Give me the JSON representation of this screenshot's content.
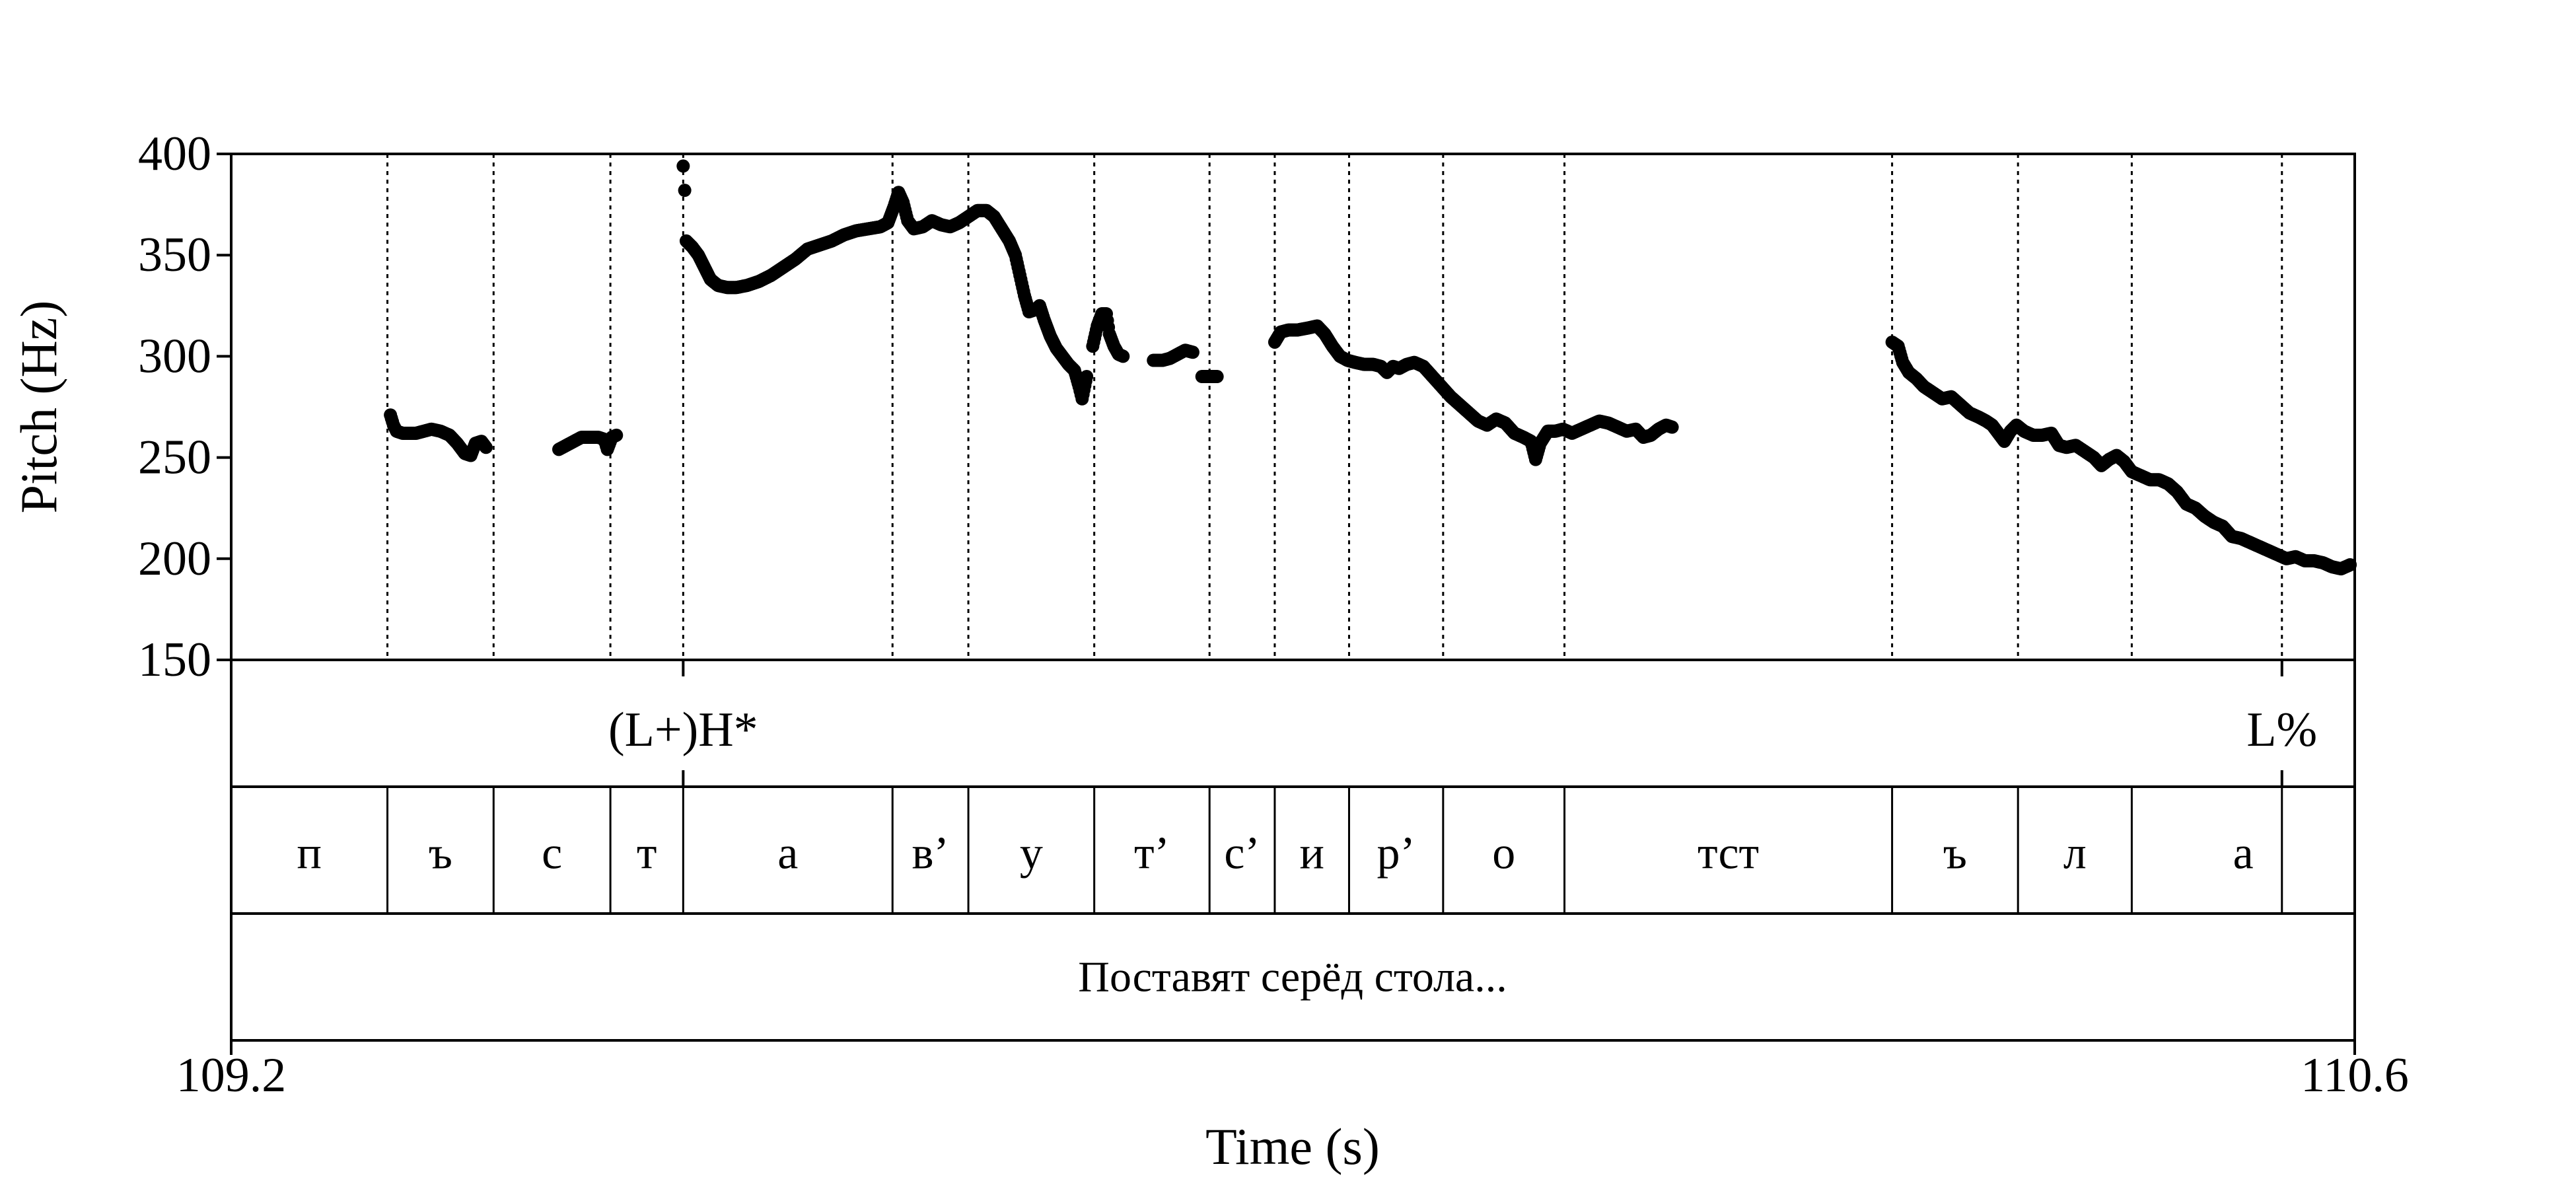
{
  "chart_data": {
    "type": "scatter",
    "title": "",
    "xlabel": "Time (s)",
    "ylabel": "Pitch (Hz)",
    "xlim": [
      109.2,
      110.6
    ],
    "ylim": [
      150,
      400
    ],
    "x_tick_labels": [
      "109.2",
      "110.6"
    ],
    "y_ticks": [
      150,
      200,
      250,
      300,
      350,
      400
    ],
    "y_tick_labels": [
      "150",
      "200",
      "250",
      "300",
      "350",
      "400"
    ],
    "grid": false,
    "legend": "none",
    "point_color": "#000000",
    "segment_boundaries": [
      109.303,
      109.373,
      109.45,
      109.498,
      109.636,
      109.686,
      109.769,
      109.845,
      109.888,
      109.937,
      109.999,
      110.079,
      110.295,
      110.378,
      110.453,
      110.552
    ],
    "tones": [
      {
        "label": "(L+)H*",
        "x": 109.498
      },
      {
        "label": "L%",
        "x": 110.552
      }
    ],
    "segments": [
      {
        "label": "п",
        "start": 109.2,
        "end": 109.303
      },
      {
        "label": "ъ",
        "start": 109.303,
        "end": 109.373
      },
      {
        "label": "с",
        "start": 109.373,
        "end": 109.45
      },
      {
        "label": "т",
        "start": 109.45,
        "end": 109.498
      },
      {
        "label": "а",
        "start": 109.498,
        "end": 109.636
      },
      {
        "label": "в’",
        "start": 109.636,
        "end": 109.686
      },
      {
        "label": "у",
        "start": 109.686,
        "end": 109.769
      },
      {
        "label": "т’",
        "start": 109.769,
        "end": 109.845
      },
      {
        "label": "с’",
        "start": 109.845,
        "end": 109.888
      },
      {
        "label": "и",
        "start": 109.888,
        "end": 109.937
      },
      {
        "label": "р’",
        "start": 109.937,
        "end": 109.999
      },
      {
        "label": "о",
        "start": 109.999,
        "end": 110.079
      },
      {
        "label": "тст",
        "start": 110.079,
        "end": 110.295
      },
      {
        "label": "ъ",
        "start": 110.295,
        "end": 110.378
      },
      {
        "label": "л",
        "start": 110.378,
        "end": 110.453
      },
      {
        "label": "а",
        "start": 110.453,
        "end": 110.6
      }
    ],
    "sentence": "Поставят серёд стола...",
    "pitch_runs": [
      [
        [
          109.305,
          271
        ],
        [
          109.307,
          266
        ],
        [
          109.309,
          263
        ],
        [
          109.313,
          262
        ],
        [
          109.317,
          262
        ],
        [
          109.322,
          262
        ],
        [
          109.327,
          263
        ],
        [
          109.332,
          264
        ],
        [
          109.338,
          263
        ],
        [
          109.344,
          261
        ],
        [
          109.349,
          257
        ],
        [
          109.354,
          252
        ],
        [
          109.358,
          251
        ],
        [
          109.361,
          257
        ],
        [
          109.365,
          258
        ],
        [
          109.368,
          255
        ]
      ],
      [
        [
          109.416,
          254
        ],
        [
          109.421,
          256
        ],
        [
          109.426,
          258
        ],
        [
          109.431,
          260
        ],
        [
          109.437,
          260
        ],
        [
          109.442,
          260
        ],
        [
          109.446,
          259
        ],
        [
          109.448,
          254
        ],
        [
          109.451,
          260
        ],
        [
          109.454,
          261
        ]
      ],
      [
        [
          109.498,
          394
        ],
        [
          109.499,
          382
        ],
        [
          109.5,
          357
        ],
        [
          109.504,
          354
        ],
        [
          109.508,
          350
        ],
        [
          109.512,
          344
        ],
        [
          109.516,
          338
        ],
        [
          109.521,
          335
        ],
        [
          109.527,
          334
        ],
        [
          109.533,
          334
        ],
        [
          109.54,
          335
        ],
        [
          109.548,
          337
        ],
        [
          109.556,
          340
        ],
        [
          109.564,
          344
        ],
        [
          109.572,
          348
        ],
        [
          109.58,
          353
        ],
        [
          109.588,
          355
        ],
        [
          109.596,
          357
        ],
        [
          109.604,
          360
        ],
        [
          109.612,
          362
        ],
        [
          109.62,
          363
        ],
        [
          109.628,
          364
        ],
        [
          109.633,
          366
        ],
        [
          109.637,
          374
        ],
        [
          109.64,
          381
        ],
        [
          109.643,
          376
        ],
        [
          109.646,
          367
        ],
        [
          109.65,
          363
        ],
        [
          109.656,
          364
        ],
        [
          109.662,
          367
        ],
        [
          109.668,
          365
        ],
        [
          109.674,
          364
        ],
        [
          109.68,
          366
        ],
        [
          109.686,
          369
        ],
        [
          109.692,
          372
        ],
        [
          109.698,
          372
        ],
        [
          109.703,
          369
        ],
        [
          109.708,
          363
        ],
        [
          109.713,
          357
        ],
        [
          109.717,
          350
        ],
        [
          109.72,
          340
        ],
        [
          109.723,
          330
        ],
        [
          109.726,
          322
        ],
        [
          109.73,
          323
        ],
        [
          109.733,
          325
        ],
        [
          109.736,
          318
        ],
        [
          109.74,
          310
        ],
        [
          109.744,
          304
        ],
        [
          109.748,
          300
        ],
        [
          109.752,
          296
        ],
        [
          109.756,
          293
        ],
        [
          109.759,
          285
        ],
        [
          109.761,
          279
        ],
        [
          109.764,
          290
        ]
      ],
      [
        [
          109.768,
          305
        ],
        [
          109.771,
          315
        ],
        [
          109.774,
          321
        ],
        [
          109.777,
          321
        ],
        [
          109.779,
          311
        ],
        [
          109.782,
          305
        ],
        [
          109.785,
          301
        ],
        [
          109.788,
          300
        ]
      ],
      [
        [
          109.808,
          298
        ],
        [
          109.814,
          298
        ],
        [
          109.819,
          299
        ],
        [
          109.824,
          301
        ],
        [
          109.829,
          303
        ],
        [
          109.834,
          302
        ]
      ],
      [
        [
          109.84,
          290
        ],
        [
          109.845,
          290
        ],
        [
          109.85,
          290
        ]
      ],
      [
        [
          109.888,
          307
        ],
        [
          109.892,
          312
        ],
        [
          109.897,
          313
        ],
        [
          109.903,
          313
        ],
        [
          109.91,
          314
        ],
        [
          109.916,
          315
        ],
        [
          109.921,
          311
        ],
        [
          109.926,
          305
        ],
        [
          109.931,
          300
        ],
        [
          109.936,
          298
        ],
        [
          109.941,
          297
        ],
        [
          109.947,
          296
        ],
        [
          109.953,
          296
        ],
        [
          109.958,
          295
        ],
        [
          109.962,
          292
        ],
        [
          109.966,
          295
        ],
        [
          109.97,
          294
        ],
        [
          109.975,
          296
        ],
        [
          109.98,
          297
        ],
        [
          109.986,
          295
        ],
        [
          109.992,
          290
        ],
        [
          109.998,
          285
        ],
        [
          110.004,
          280
        ],
        [
          110.01,
          276
        ],
        [
          110.016,
          272
        ],
        [
          110.022,
          268
        ],
        [
          110.028,
          266
        ],
        [
          110.034,
          269
        ],
        [
          110.04,
          267
        ],
        [
          110.046,
          262
        ],
        [
          110.052,
          260
        ],
        [
          110.057,
          258
        ],
        [
          110.06,
          249
        ],
        [
          110.063,
          257
        ],
        [
          110.068,
          263
        ],
        [
          110.073,
          263
        ],
        [
          110.078,
          264
        ],
        [
          110.084,
          262
        ],
        [
          110.09,
          264
        ],
        [
          110.096,
          266
        ],
        [
          110.102,
          268
        ],
        [
          110.108,
          267
        ],
        [
          110.114,
          265
        ],
        [
          110.12,
          263
        ],
        [
          110.126,
          264
        ],
        [
          110.131,
          260
        ],
        [
          110.136,
          261
        ],
        [
          110.141,
          264
        ],
        [
          110.146,
          266
        ],
        [
          110.15,
          265
        ]
      ],
      [
        [
          110.295,
          307
        ],
        [
          110.299,
          305
        ],
        [
          110.302,
          297
        ],
        [
          110.306,
          292
        ],
        [
          110.311,
          289
        ],
        [
          110.316,
          285
        ],
        [
          110.322,
          282
        ],
        [
          110.328,
          279
        ],
        [
          110.334,
          280
        ],
        [
          110.34,
          276
        ],
        [
          110.346,
          272
        ],
        [
          110.352,
          270
        ],
        [
          110.357,
          268
        ],
        [
          110.361,
          266
        ],
        [
          110.365,
          262
        ],
        [
          110.369,
          258
        ],
        [
          110.373,
          263
        ],
        [
          110.377,
          266
        ],
        [
          110.382,
          263
        ],
        [
          110.388,
          261
        ],
        [
          110.394,
          261
        ],
        [
          110.4,
          262
        ],
        [
          110.405,
          256
        ],
        [
          110.41,
          255
        ],
        [
          110.416,
          256
        ],
        [
          110.422,
          253
        ],
        [
          110.428,
          250
        ],
        [
          110.433,
          246
        ],
        [
          110.438,
          249
        ],
        [
          110.443,
          251
        ],
        [
          110.448,
          248
        ],
        [
          110.453,
          243
        ],
        [
          110.459,
          241
        ],
        [
          110.465,
          239
        ],
        [
          110.471,
          239
        ],
        [
          110.477,
          237
        ],
        [
          110.483,
          233
        ],
        [
          110.489,
          227
        ],
        [
          110.495,
          225
        ],
        [
          110.501,
          221
        ],
        [
          110.507,
          218
        ],
        [
          110.513,
          216
        ],
        [
          110.519,
          211
        ],
        [
          110.525,
          210
        ],
        [
          110.531,
          208
        ],
        [
          110.537,
          206
        ],
        [
          110.543,
          204
        ],
        [
          110.549,
          202
        ],
        [
          110.555,
          200
        ],
        [
          110.561,
          201
        ],
        [
          110.567,
          199
        ],
        [
          110.573,
          199
        ],
        [
          110.579,
          198
        ],
        [
          110.585,
          196
        ],
        [
          110.591,
          195
        ],
        [
          110.597,
          197
        ]
      ]
    ]
  }
}
